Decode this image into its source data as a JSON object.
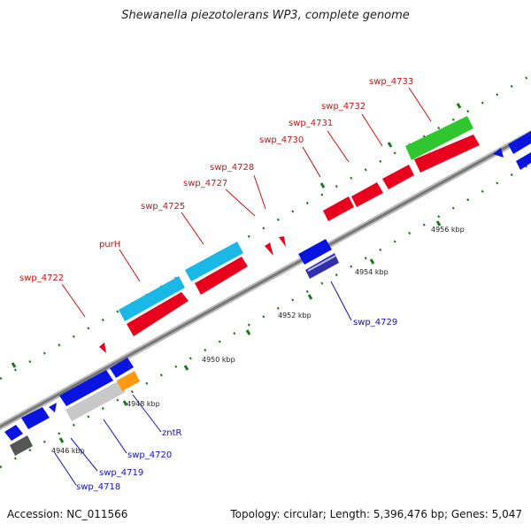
{
  "header": {
    "title": "Shewanella piezotolerans WP3, complete genome"
  },
  "footer": {
    "accession": "Accession: NC_011566",
    "summary": "Topology: circular; Length: 5,396,476 bp; Genes: 5,047"
  },
  "colors": {
    "forward_gene": "#e8001c",
    "reverse_gene": "#0a14e0",
    "light_blue_gene": "#19b8e6",
    "green_gene": "#2fc62f",
    "orange_gene": "#ff9910",
    "gray_gene": "#c8c8c8",
    "dark_gray_gene": "#555555",
    "backbone": "#888888",
    "tick": "#1a7a1a",
    "forward_label": "#cc1111",
    "reverse_label": "#1111bb"
  },
  "scale_labels": [
    "4946 kbp",
    "4948 kbp",
    "4950 kbp",
    "4952 kbp",
    "4954 kbp",
    "4956 kbp"
  ],
  "forward_labels": [
    "swp_4722",
    "purH",
    "swp_4725",
    "swp_4727",
    "swp_4728",
    "swp_4730",
    "swp_4731",
    "swp_4732",
    "swp_4733"
  ],
  "reverse_labels": [
    "swp_4718",
    "swp_4719",
    "swp_4720",
    "zntR",
    "swp_4729"
  ]
}
